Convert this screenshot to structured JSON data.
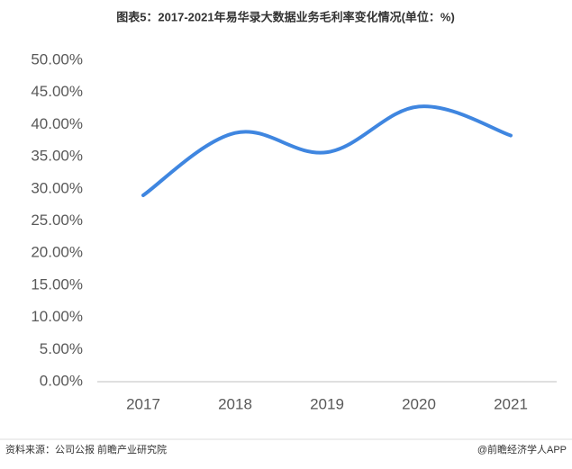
{
  "chart_data": {
    "type": "line",
    "title": "图表5：2017-2021年易华录大数据业务毛利率变化情况(单位：%)",
    "categories": [
      "2017",
      "2018",
      "2019",
      "2020",
      "2021"
    ],
    "series": [
      {
        "name": "毛利率",
        "color": "#3f86e0",
        "values": [
          29.0,
          38.7,
          35.7,
          42.8,
          38.3
        ]
      }
    ],
    "ylim": [
      0,
      50
    ],
    "yticks": [
      {
        "value": 0,
        "label": "0.00%"
      },
      {
        "value": 5,
        "label": "5.00%"
      },
      {
        "value": 10,
        "label": "10.00%"
      },
      {
        "value": 15,
        "label": "15.00%"
      },
      {
        "value": 20,
        "label": "20.00%"
      },
      {
        "value": 25,
        "label": "25.00%"
      },
      {
        "value": 30,
        "label": "30.00%"
      },
      {
        "value": 35,
        "label": "35.00%"
      },
      {
        "value": 40,
        "label": "40.00%"
      },
      {
        "value": 45,
        "label": "45.00%"
      },
      {
        "value": 50,
        "label": "50.00%"
      }
    ],
    "grid": false,
    "source": "资料来源：公司公报 前瞻产业研究院",
    "credit": "@前瞻经济学人APP"
  }
}
